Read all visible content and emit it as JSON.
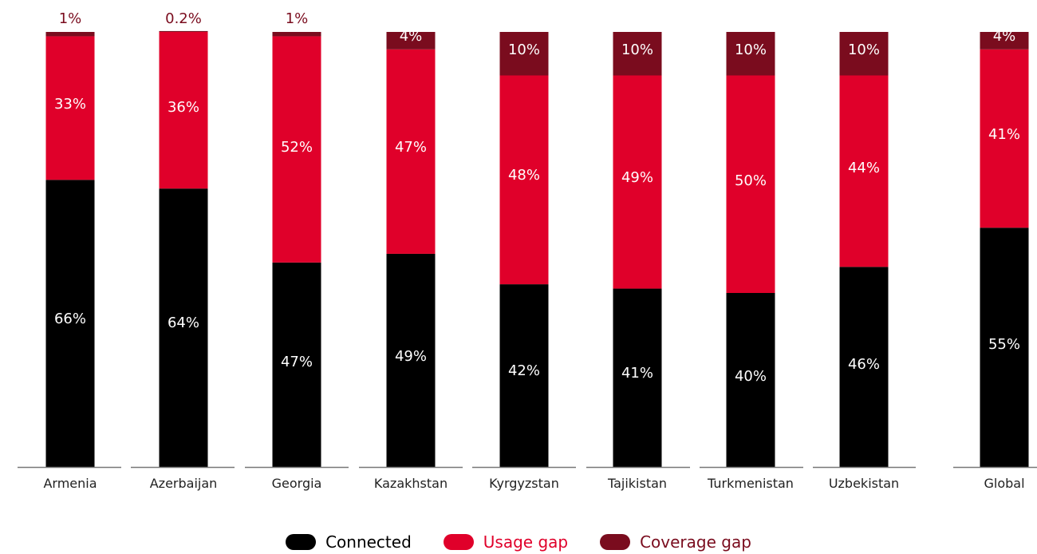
{
  "chart_data": {
    "type": "bar",
    "stacked": true,
    "categories": [
      "Armenia",
      "Azerbaijan",
      "Georgia",
      "Kazakhstan",
      "Kyrgyzstan",
      "Tajikistan",
      "Turkmenistan",
      "Uzbekistan",
      "Global"
    ],
    "series": [
      {
        "name": "Connected",
        "color": "#000000",
        "values": [
          66,
          64,
          47,
          49,
          42,
          41,
          40,
          46,
          55
        ],
        "labels": [
          "66%",
          "64%",
          "47%",
          "49%",
          "42%",
          "41%",
          "40%",
          "46%",
          "55%"
        ]
      },
      {
        "name": "Usage gap",
        "color": "#e0002a",
        "values": [
          33,
          36,
          52,
          47,
          48,
          49,
          50,
          44,
          41
        ],
        "labels": [
          "33%",
          "36%",
          "52%",
          "47%",
          "48%",
          "49%",
          "50%",
          "44%",
          "41%"
        ]
      },
      {
        "name": "Coverage gap",
        "color": "#7a0c1e",
        "values": [
          1,
          0.2,
          1,
          4,
          10,
          10,
          10,
          10,
          4
        ],
        "labels": [
          "1%",
          "0.2%",
          "1%",
          "4%",
          "10%",
          "10%",
          "10%",
          "10%",
          "4%"
        ]
      }
    ],
    "ylim": [
      0,
      100
    ],
    "grid": false,
    "legend_position": "bottom-center"
  }
}
